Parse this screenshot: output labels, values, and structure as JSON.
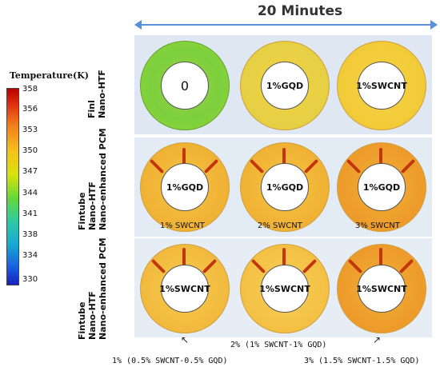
{
  "header": {
    "title": "20 Minutes"
  },
  "legend": {
    "title": "Temperature(K)",
    "ticks": [
      "358",
      "356",
      "353",
      "350",
      "347",
      "344",
      "341",
      "338",
      "334",
      "330"
    ]
  },
  "rows": [
    {
      "label": "Finl\nNano-HTF",
      "line1": "Finl",
      "line2": "Nano-HTF",
      "line3": ""
    },
    {
      "label": "Fintube Nano-HTF Nano-enhanced PCM",
      "line1": "Fintube",
      "line2": "Nano-HTF",
      "line3": "Nano-enhanced PCM"
    },
    {
      "label": "Fintube Nano-HTF Nano-enhanced PCM",
      "line1": "Fintube",
      "line2": "Nano-HTF",
      "line3": "Nano-enhanced PCM"
    }
  ],
  "cells": {
    "r1": [
      "0",
      "1%GQD",
      "1%SWCNT"
    ],
    "r2": [
      "1%GQD",
      "1%GQD",
      "1%GQD"
    ],
    "r3": [
      "1%SWCNT",
      "1%SWCNT",
      "1%SWCNT"
    ]
  },
  "row2_sub": [
    "1% SWCNT",
    "2% SWCNT",
    "3% SWCNT"
  ],
  "bottom_labels": [
    "1% (0.5% SWCNT-0.5% GQD)",
    "2% (1% SWCNT-1% GQD)",
    "3% (1.5% SWCNT-1.5% GQD)"
  ],
  "colors": {
    "arrow": "#5b8fd6",
    "fin": "#c2360e"
  }
}
